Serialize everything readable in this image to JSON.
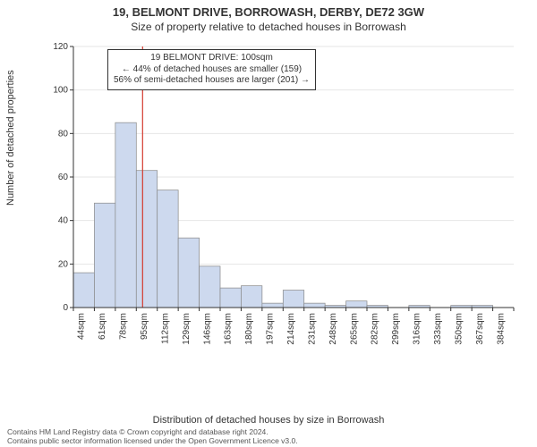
{
  "header": {
    "title": "19, BELMONT DRIVE, BORROWASH, DERBY, DE72 3GW",
    "subtitle": "Size of property relative to detached houses in Borrowash"
  },
  "axes": {
    "ylabel": "Number of detached properties",
    "xlabel": "Distribution of detached houses by size in Borrowash"
  },
  "chart": {
    "type": "histogram",
    "ylim": [
      0,
      120
    ],
    "yticks": [
      0,
      20,
      40,
      60,
      80,
      100,
      120
    ],
    "xticks": [
      "44sqm",
      "61sqm",
      "78sqm",
      "95sqm",
      "112sqm",
      "129sqm",
      "146sqm",
      "163sqm",
      "180sqm",
      "197sqm",
      "214sqm",
      "231sqm",
      "248sqm",
      "265sqm",
      "282sqm",
      "299sqm",
      "316sqm",
      "333sqm",
      "350sqm",
      "367sqm",
      "384sqm"
    ],
    "values": [
      16,
      48,
      85,
      63,
      54,
      32,
      19,
      9,
      10,
      2,
      8,
      2,
      1,
      3,
      1,
      0,
      1,
      0,
      1,
      1,
      0
    ],
    "bar_fill": "#cdd9ee",
    "bar_stroke": "#888888",
    "bar_width": 1.0,
    "background": "#ffffff",
    "grid_color": "#e6e6e6",
    "marker": {
      "position_index": 3.3,
      "color": "#d43a2f"
    }
  },
  "annotation": {
    "line1": "19 BELMONT DRIVE: 100sqm",
    "line2": "← 44% of detached houses are smaller (159)",
    "line3": "56% of semi-detached houses are larger (201) →"
  },
  "footer": {
    "line1": "Contains HM Land Registry data © Crown copyright and database right 2024.",
    "line2": "Contains public sector information licensed under the Open Government Licence v3.0."
  }
}
